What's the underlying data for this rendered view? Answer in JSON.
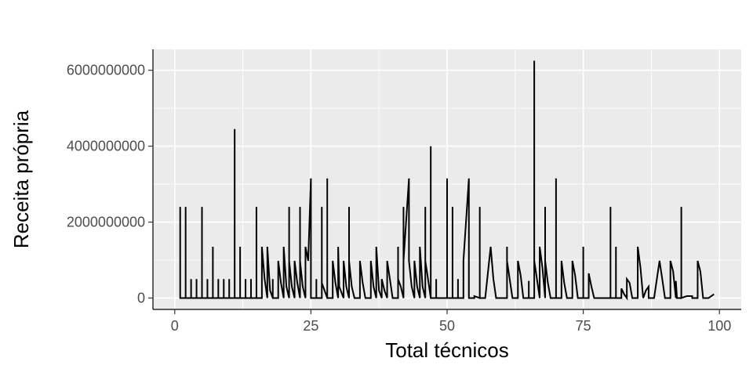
{
  "chart_data": {
    "type": "line",
    "title": "",
    "xlabel": "Total técnicos",
    "ylabel": "Receita própria",
    "xlim": [
      -4,
      104
    ],
    "ylim": [
      -300000000,
      6550000000
    ],
    "x_ticks": [
      0,
      25,
      50,
      75,
      100
    ],
    "x_tick_labels": [
      "0",
      "25",
      "50",
      "75",
      "100"
    ],
    "y_ticks": [
      0,
      2000000000,
      4000000000,
      6000000000
    ],
    "y_tick_labels": [
      "0",
      "2000000000",
      "4000000000",
      "6000000000"
    ],
    "grid": true,
    "colors": {
      "panel": "#ebebeb",
      "grid": "#ffffff",
      "line": "#000000",
      "tick_text": "#4d4d4d"
    },
    "series": [
      {
        "points": [
          [
            1,
            0
          ],
          [
            1,
            2400000000
          ],
          [
            1,
            0
          ],
          [
            2,
            0
          ],
          [
            2,
            2400000000
          ],
          [
            2,
            0
          ],
          [
            3,
            0
          ],
          [
            3,
            500000000
          ],
          [
            3,
            0
          ],
          [
            4,
            0
          ],
          [
            4,
            500000000
          ],
          [
            4,
            0
          ],
          [
            5,
            0
          ],
          [
            5,
            2400000000
          ],
          [
            5,
            0
          ],
          [
            6,
            0
          ],
          [
            6,
            500000000
          ],
          [
            6,
            0
          ],
          [
            7,
            0
          ],
          [
            7,
            1350000000
          ],
          [
            7,
            0
          ],
          [
            8,
            0
          ],
          [
            8,
            500000000
          ],
          [
            8,
            0
          ],
          [
            9,
            0
          ],
          [
            9,
            500000000
          ],
          [
            9,
            0
          ],
          [
            10,
            0
          ],
          [
            10,
            500000000
          ],
          [
            10,
            0
          ],
          [
            11,
            0
          ],
          [
            11,
            4450000000
          ],
          [
            11,
            0
          ],
          [
            12,
            0
          ],
          [
            12,
            1350000000
          ],
          [
            12,
            0
          ],
          [
            13,
            0
          ],
          [
            13,
            500000000
          ],
          [
            13,
            0
          ],
          [
            14,
            0
          ],
          [
            14,
            500000000
          ],
          [
            14,
            0
          ],
          [
            15,
            0
          ],
          [
            15,
            2400000000
          ],
          [
            15,
            0
          ],
          [
            16,
            0
          ],
          [
            16,
            1350000000
          ],
          [
            16.5,
            500000000
          ],
          [
            17,
            0
          ],
          [
            17,
            1350000000
          ],
          [
            17.5,
            200000000
          ],
          [
            18,
            0
          ],
          [
            18,
            500000000
          ],
          [
            18,
            0
          ],
          [
            19,
            0
          ],
          [
            19,
            980000000
          ],
          [
            19.5,
            400000000
          ],
          [
            20,
            0
          ],
          [
            20,
            1350000000
          ],
          [
            20.5,
            300000000
          ],
          [
            21,
            0
          ],
          [
            21,
            2400000000
          ],
          [
            21,
            980000000
          ],
          [
            21.5,
            300000000
          ],
          [
            22,
            0
          ],
          [
            22,
            980000000
          ],
          [
            22.5,
            400000000
          ],
          [
            23,
            0
          ],
          [
            23,
            2400000000
          ],
          [
            23,
            980000000
          ],
          [
            23.5,
            300000000
          ],
          [
            24,
            0
          ],
          [
            24,
            1350000000
          ],
          [
            24.5,
            980000000
          ],
          [
            25,
            3150000000
          ],
          [
            25,
            0
          ],
          [
            26,
            0
          ],
          [
            26,
            500000000
          ],
          [
            26,
            0
          ],
          [
            27,
            0
          ],
          [
            27,
            2400000000
          ],
          [
            27,
            400000000
          ],
          [
            28,
            0
          ],
          [
            28,
            3150000000
          ],
          [
            28,
            0
          ],
          [
            29,
            0
          ],
          [
            29,
            980000000
          ],
          [
            29.5,
            400000000
          ],
          [
            30,
            0
          ],
          [
            30,
            1350000000
          ],
          [
            30.2,
            300000000
          ],
          [
            31,
            0
          ],
          [
            31,
            980000000
          ],
          [
            31.5,
            300000000
          ],
          [
            32,
            0
          ],
          [
            32,
            2400000000
          ],
          [
            32,
            980000000
          ],
          [
            32.5,
            300000000
          ],
          [
            33,
            0
          ],
          [
            34,
            0
          ],
          [
            34,
            980000000
          ],
          [
            34.5,
            400000000
          ],
          [
            35,
            0
          ],
          [
            36,
            0
          ],
          [
            36,
            980000000
          ],
          [
            36.5,
            300000000
          ],
          [
            37,
            0
          ],
          [
            37,
            1350000000
          ],
          [
            37.5,
            200000000
          ],
          [
            38,
            0
          ],
          [
            38,
            500000000
          ],
          [
            38.5,
            200000000
          ],
          [
            39,
            0
          ],
          [
            39,
            980000000
          ],
          [
            39.5,
            500000000
          ],
          [
            40,
            0
          ],
          [
            41,
            0
          ],
          [
            41,
            1350000000
          ],
          [
            41,
            500000000
          ],
          [
            41.5,
            300000000
          ],
          [
            42,
            0
          ],
          [
            42,
            2400000000
          ],
          [
            42,
            980000000
          ],
          [
            43,
            3150000000
          ],
          [
            43,
            980000000
          ],
          [
            43.5,
            300000000
          ],
          [
            44,
            0
          ],
          [
            44,
            980000000
          ],
          [
            44.5,
            300000000
          ],
          [
            45,
            0
          ],
          [
            45,
            1350000000
          ],
          [
            45.5,
            300000000
          ],
          [
            46,
            0
          ],
          [
            46,
            2400000000
          ],
          [
            46,
            980000000
          ],
          [
            46.5,
            500000000
          ],
          [
            47,
            0
          ],
          [
            47,
            4000000000
          ],
          [
            47,
            0
          ],
          [
            48,
            0
          ],
          [
            48,
            500000000
          ],
          [
            48,
            0
          ],
          [
            50,
            0
          ],
          [
            50,
            3150000000
          ],
          [
            50,
            0
          ],
          [
            51,
            0
          ],
          [
            51,
            2400000000
          ],
          [
            51,
            0
          ],
          [
            52,
            0
          ],
          [
            52,
            500000000
          ],
          [
            52,
            0
          ],
          [
            53,
            0
          ],
          [
            53,
            980000000
          ],
          [
            54,
            3150000000
          ],
          [
            54,
            0
          ],
          [
            55,
            0
          ],
          [
            55,
            50000000
          ],
          [
            56,
            0
          ],
          [
            56,
            2400000000
          ],
          [
            56,
            0
          ],
          [
            57,
            0
          ],
          [
            58,
            1350000000
          ],
          [
            58.5,
            500000000
          ],
          [
            59,
            0
          ],
          [
            60,
            0
          ],
          [
            61,
            0
          ],
          [
            61,
            1350000000
          ],
          [
            61,
            980000000
          ],
          [
            62,
            0
          ],
          [
            63,
            0
          ],
          [
            63,
            980000000
          ],
          [
            63.5,
            600000000
          ],
          [
            64,
            0
          ],
          [
            65,
            0
          ],
          [
            65,
            450000000
          ],
          [
            65,
            0
          ],
          [
            66,
            0
          ],
          [
            66,
            6250000000
          ],
          [
            66,
            980000000
          ],
          [
            66.5,
            500000000
          ],
          [
            67,
            0
          ],
          [
            67,
            1350000000
          ],
          [
            67.5,
            800000000
          ],
          [
            68,
            0
          ],
          [
            68,
            2400000000
          ],
          [
            68,
            980000000
          ],
          [
            68.5,
            400000000
          ],
          [
            69,
            0
          ],
          [
            70,
            0
          ],
          [
            70,
            3150000000
          ],
          [
            70,
            0
          ],
          [
            71,
            0
          ],
          [
            71,
            980000000
          ],
          [
            71.5,
            400000000
          ],
          [
            72,
            0
          ],
          [
            73,
            0
          ],
          [
            73,
            980000000
          ],
          [
            73.5,
            600000000
          ],
          [
            74,
            0
          ],
          [
            75,
            0
          ],
          [
            75,
            1350000000
          ],
          [
            75,
            0
          ],
          [
            76,
            0
          ],
          [
            76,
            650000000
          ],
          [
            76.5,
            300000000
          ],
          [
            77,
            0
          ],
          [
            79,
            0
          ],
          [
            80,
            0
          ],
          [
            80,
            2400000000
          ],
          [
            80,
            0
          ],
          [
            81,
            0
          ],
          [
            81,
            1350000000
          ],
          [
            81,
            0
          ],
          [
            82,
            0
          ],
          [
            82,
            250000000
          ],
          [
            82.5,
            100000000
          ],
          [
            83,
            0
          ],
          [
            83,
            500000000
          ],
          [
            83.5,
            400000000
          ],
          [
            84,
            0
          ],
          [
            85,
            0
          ],
          [
            85,
            1350000000
          ],
          [
            85.5,
            800000000
          ],
          [
            86,
            0
          ],
          [
            86.5,
            200000000
          ],
          [
            87,
            300000000
          ],
          [
            87,
            0
          ],
          [
            88,
            0
          ],
          [
            89,
            980000000
          ],
          [
            89.5,
            500000000
          ],
          [
            90,
            0
          ],
          [
            91,
            0
          ],
          [
            91,
            980000000
          ],
          [
            91.5,
            700000000
          ],
          [
            92,
            0
          ],
          [
            92,
            450000000
          ],
          [
            92.2,
            0
          ],
          [
            93,
            0
          ],
          [
            93,
            2400000000
          ],
          [
            93,
            0
          ],
          [
            94,
            50000000
          ],
          [
            95,
            50000000
          ],
          [
            95,
            0
          ],
          [
            96,
            0
          ],
          [
            96,
            980000000
          ],
          [
            96.5,
            700000000
          ],
          [
            97,
            0
          ],
          [
            98,
            0
          ],
          [
            99,
            100000000
          ]
        ]
      }
    ]
  }
}
